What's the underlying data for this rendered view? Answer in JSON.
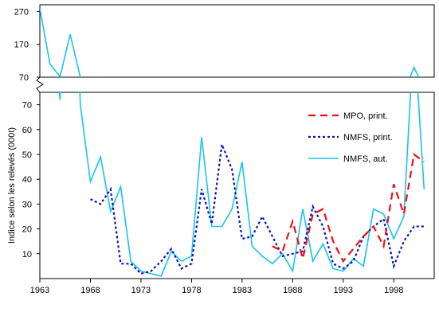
{
  "chart_data": {
    "type": "line",
    "title": "",
    "xlabel": "",
    "ylabel": "Indice selon les relevés (000t)",
    "axis_break": true,
    "x_ticks": [
      1963,
      1968,
      1973,
      1978,
      1983,
      1988,
      1993,
      1998
    ],
    "xlim": [
      1963,
      2002
    ],
    "upper_panel": {
      "ylim": [
        70,
        290
      ],
      "y_ticks": [
        70,
        170,
        270
      ]
    },
    "lower_panel": {
      "ylim": [
        0,
        75
      ],
      "y_ticks": [
        10,
        20,
        30,
        40,
        50,
        60,
        70
      ]
    },
    "legend_position": "top-right",
    "grid": false,
    "series": [
      {
        "name": "MPO, print.",
        "color": "#e8111a",
        "style": "dashed",
        "x": [
          1986,
          1987,
          1988,
          1989,
          1990,
          1991,
          1992,
          1993,
          1994,
          1995,
          1996,
          1997,
          1998,
          1999,
          2000,
          2001
        ],
        "y": [
          13,
          11,
          23,
          8,
          26,
          28,
          15,
          7,
          12,
          17,
          21,
          13,
          38,
          26,
          50,
          47
        ]
      },
      {
        "name": "NMFS, print.",
        "color": "#0a14b4",
        "style": "dotted",
        "x": [
          1968,
          1969,
          1970,
          1971,
          1972,
          1973,
          1974,
          1975,
          1976,
          1977,
          1978,
          1979,
          1980,
          1981,
          1982,
          1983,
          1984,
          1985,
          1986,
          1987,
          1988,
          1989,
          1990,
          1991,
          1992,
          1993,
          1994,
          1995,
          1996,
          1997,
          1998,
          1999,
          2000,
          2001
        ],
        "y": [
          32,
          30,
          36,
          6,
          6,
          2,
          3,
          7,
          12,
          4,
          6,
          36,
          22,
          54,
          44,
          16,
          17,
          25,
          17,
          9,
          10,
          11,
          29,
          21,
          6,
          4,
          7,
          17,
          21,
          24,
          5,
          15,
          21,
          21
        ]
      },
      {
        "name": "NMFS, aut.",
        "color": "#19c3ec",
        "style": "solid",
        "x": [
          1963,
          1964,
          1965,
          1966,
          1967,
          1968,
          1969,
          1970,
          1971,
          1972,
          1973,
          1974,
          1975,
          1976,
          1977,
          1978,
          1979,
          1980,
          1981,
          1982,
          1983,
          1984,
          1985,
          1986,
          1987,
          1988,
          1989,
          1990,
          1991,
          1992,
          1993,
          1994,
          1995,
          1996,
          1997,
          1998,
          1999,
          2000,
          2001
        ],
        "y": [
          280,
          110,
          72,
          200,
          70,
          39,
          49,
          27,
          37,
          7,
          3,
          2,
          1,
          11,
          7,
          9,
          57,
          21,
          21,
          28,
          47,
          13,
          9,
          6,
          10,
          3,
          28,
          7,
          14,
          4,
          3,
          8,
          5,
          28,
          26,
          16,
          25,
          100,
          36
        ]
      }
    ]
  }
}
